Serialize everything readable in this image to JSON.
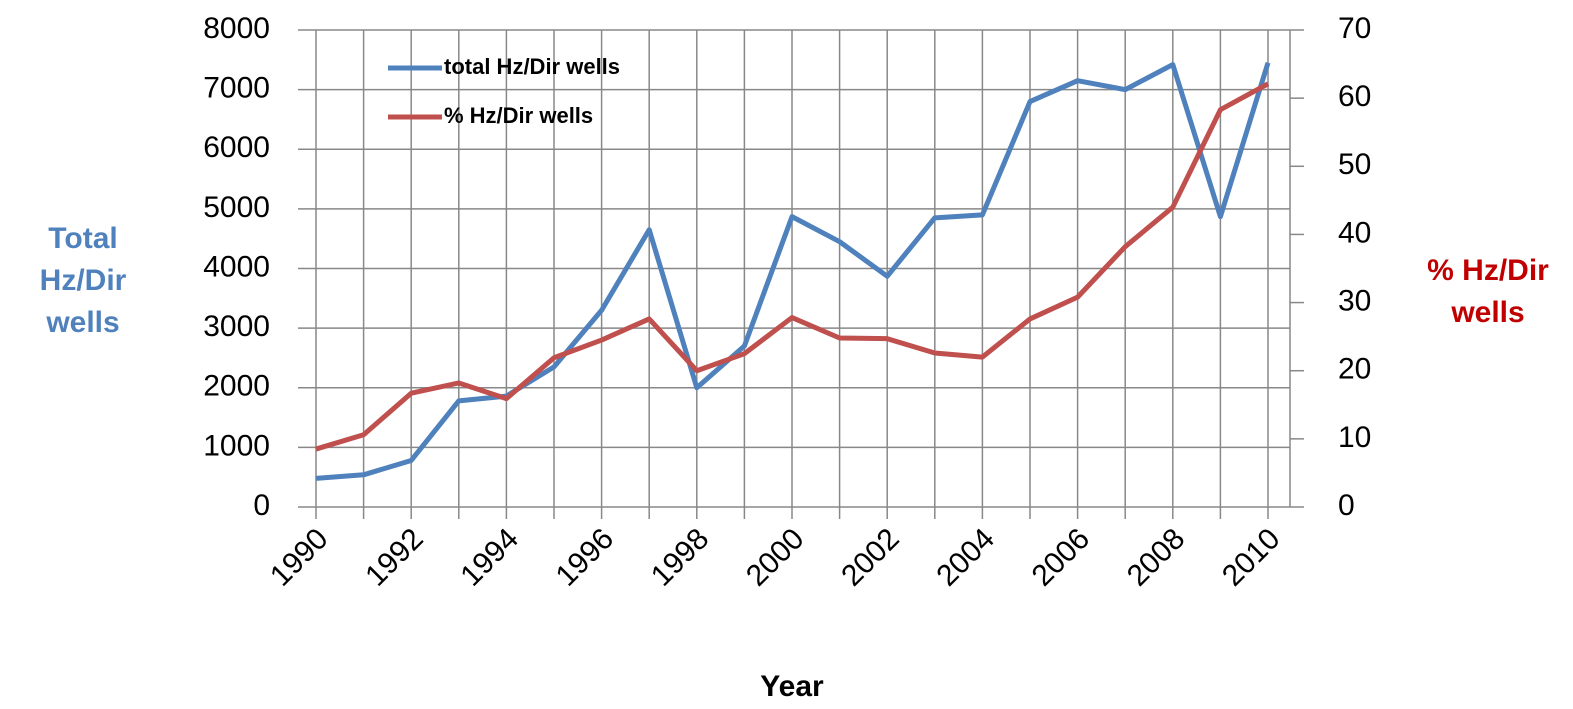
{
  "chart_data": {
    "type": "line",
    "x_label": "Year",
    "y_label": "Total Hz/Dir wells",
    "y2_label": "% Hz/Dir wells",
    "categories": [
      "1990",
      null,
      "1992",
      null,
      "1994",
      null,
      "1996",
      null,
      "1998",
      null,
      "2000",
      null,
      "2002",
      null,
      "2004",
      null,
      "2006",
      null,
      "2008",
      null,
      "2010"
    ],
    "series": [
      {
        "name": "total Hz/Dir wells",
        "color": "#4f81bd",
        "values": [
          480,
          540,
          780,
          1780,
          1860,
          2350,
          3300,
          4650,
          2000,
          2700,
          4870,
          4450,
          3870,
          4850,
          4900,
          6800,
          7150,
          7000,
          7420,
          4870,
          7450
        ]
      },
      {
        "name": "% Hz/Dir wells",
        "color": "#c0504d",
        "axis": "y2",
        "values": [
          8.5,
          10.6,
          16.7,
          18.2,
          15.9,
          21.9,
          24.5,
          27.6,
          20.0,
          22.5,
          27.8,
          24.8,
          24.7,
          22.6,
          22.0,
          27.6,
          30.8,
          38.2,
          44.0,
          58.3,
          62.1
        ]
      }
    ],
    "ylim": [
      0,
      8000
    ],
    "yticks": [
      0,
      1000,
      2000,
      3000,
      4000,
      5000,
      6000,
      7000,
      8000
    ],
    "y2lim": [
      0,
      70
    ],
    "y2ticks": [
      0,
      10,
      20,
      30,
      40,
      50,
      60,
      70
    ],
    "grid": true,
    "legend": "upper-left"
  }
}
